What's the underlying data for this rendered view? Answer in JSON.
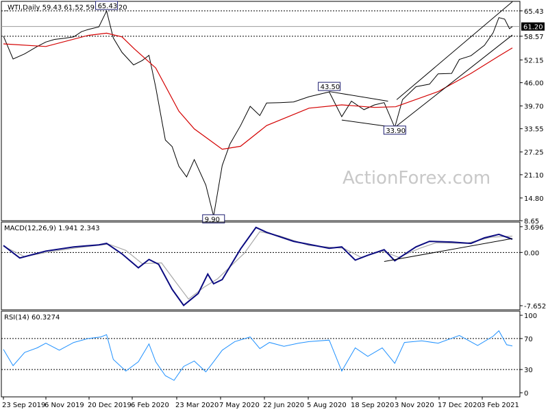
{
  "chart_data": [
    {
      "type": "candlestick",
      "header": "_WTI,Daily  59.43 61.52 59.17 61.20",
      "symbol": "_WTI",
      "timeframe": "Daily",
      "ohlc": {
        "open": 59.43,
        "high": 61.52,
        "low": 59.17,
        "close": 61.2
      },
      "y_ticks": [
        "65.43",
        "58.57",
        "52.15",
        "46.00",
        "39.70",
        "33.55",
        "27.25",
        "21.10",
        "14.80",
        "8.65"
      ],
      "ylim": [
        8.65,
        68.0
      ],
      "current_price_label": "61.20",
      "current_price": 61.2,
      "levels": [
        65.43,
        58.57
      ],
      "annotations": [
        {
          "text": "65.43",
          "date": "2020-01-08",
          "value": 65.43
        },
        {
          "text": "9.90",
          "date": "2020-04-28",
          "value": 9.9
        },
        {
          "text": "43.50",
          "date": "2020-08-26",
          "value": 43.5
        },
        {
          "text": "33.90",
          "date": "2020-11-02",
          "value": 33.9
        }
      ],
      "x_tick_labels": [
        "23 Sep 2019",
        "6 Nov 2019",
        "20 Dec 2019",
        "6 Feb 2020",
        "23 Mar 2020",
        "7 May 2020",
        "22 Jun 2020",
        "5 Aug 2020",
        "18 Sep 2020",
        "3 Nov 2020",
        "17 Dec 2020",
        "3 Feb 2021"
      ],
      "price_series": [
        [
          "2019-09-23",
          58.6
        ],
        [
          "2019-10-03",
          52.4
        ],
        [
          "2019-10-15",
          53.8
        ],
        [
          "2019-10-28",
          55.8
        ],
        [
          "2019-11-06",
          57.0
        ],
        [
          "2019-11-15",
          57.7
        ],
        [
          "2019-11-25",
          58.0
        ],
        [
          "2019-12-05",
          58.4
        ],
        [
          "2019-12-13",
          59.8
        ],
        [
          "2019-12-20",
          60.4
        ],
        [
          "2019-12-31",
          61.1
        ],
        [
          "2020-01-08",
          65.43
        ],
        [
          "2020-01-15",
          58.1
        ],
        [
          "2020-01-24",
          54.2
        ],
        [
          "2020-02-05",
          50.8
        ],
        [
          "2020-02-14",
          52.0
        ],
        [
          "2020-02-21",
          53.4
        ],
        [
          "2020-02-28",
          44.8
        ],
        [
          "2020-03-09",
          30.5
        ],
        [
          "2020-03-16",
          28.7
        ],
        [
          "2020-03-23",
          23.4
        ],
        [
          "2020-03-31",
          20.5
        ],
        [
          "2020-04-08",
          25.2
        ],
        [
          "2020-04-20",
          18.3
        ],
        [
          "2020-04-28",
          9.9
        ],
        [
          "2020-05-07",
          23.6
        ],
        [
          "2020-05-15",
          29.4
        ],
        [
          "2020-05-26",
          34.4
        ],
        [
          "2020-06-05",
          39.6
        ],
        [
          "2020-06-15",
          37.1
        ],
        [
          "2020-06-22",
          40.5
        ],
        [
          "2020-07-06",
          40.6
        ],
        [
          "2020-07-20",
          40.8
        ],
        [
          "2020-08-05",
          42.2
        ],
        [
          "2020-08-26",
          43.5
        ],
        [
          "2020-09-08",
          36.8
        ],
        [
          "2020-09-18",
          41.0
        ],
        [
          "2020-10-01",
          38.7
        ],
        [
          "2020-10-12",
          40.0
        ],
        [
          "2020-10-22",
          40.6
        ],
        [
          "2020-11-02",
          33.9
        ],
        [
          "2020-11-10",
          41.4
        ],
        [
          "2020-11-24",
          44.9
        ],
        [
          "2020-12-08",
          45.6
        ],
        [
          "2020-12-17",
          48.4
        ],
        [
          "2020-12-31",
          48.5
        ],
        [
          "2021-01-08",
          52.3
        ],
        [
          "2021-01-20",
          53.3
        ],
        [
          "2021-02-03",
          56.1
        ],
        [
          "2021-02-12",
          59.5
        ],
        [
          "2021-02-18",
          63.6
        ],
        [
          "2021-02-24",
          63.2
        ],
        [
          "2021-03-01",
          60.6
        ],
        [
          "2021-03-04",
          61.2
        ]
      ],
      "ma_series": [
        [
          "2019-09-23",
          56.5
        ],
        [
          "2019-11-06",
          55.8
        ],
        [
          "2019-12-20",
          58.8
        ],
        [
          "2020-01-08",
          59.4
        ],
        [
          "2020-01-24",
          58.4
        ],
        [
          "2020-02-06",
          55.1
        ],
        [
          "2020-02-28",
          50.0
        ],
        [
          "2020-03-23",
          38.3
        ],
        [
          "2020-04-08",
          33.5
        ],
        [
          "2020-05-07",
          28.0
        ],
        [
          "2020-05-26",
          28.8
        ],
        [
          "2020-06-22",
          34.4
        ],
        [
          "2020-08-05",
          39.1
        ],
        [
          "2020-09-08",
          40.0
        ],
        [
          "2020-10-12",
          39.3
        ],
        [
          "2020-11-03",
          39.5
        ],
        [
          "2020-12-17",
          43.6
        ],
        [
          "2021-01-20",
          48.5
        ],
        [
          "2021-02-18",
          53.2
        ],
        [
          "2021-03-04",
          55.4
        ]
      ],
      "trendlines": [
        {
          "from": [
            "2020-08-26",
            43.6
          ],
          "to": [
            "2020-10-26",
            41.0
          ]
        },
        {
          "from": [
            "2020-09-08",
            35.9
          ],
          "to": [
            "2020-11-02",
            33.9
          ]
        },
        {
          "from": [
            "2020-11-02",
            33.9
          ],
          "to": [
            "2021-03-04",
            58.9
          ]
        },
        {
          "from": [
            "2020-11-04",
            41.4
          ],
          "to": [
            "2021-03-04",
            67.9
          ]
        }
      ]
    },
    {
      "type": "line",
      "label": "MACD(12,26,9) 1.941 2.343",
      "indicator": "MACD",
      "params": [
        12,
        26,
        9
      ],
      "values": [
        1.941,
        2.343
      ],
      "y_ticks": [
        "3.696",
        "0.00",
        "-7.652"
      ],
      "ylim": [
        -7.652,
        3.696
      ],
      "macd_series": [
        [
          "2019-09-23",
          1.0
        ],
        [
          "2019-10-10",
          -0.8
        ],
        [
          "2019-11-06",
          0.2
        ],
        [
          "2019-12-05",
          0.8
        ],
        [
          "2019-12-31",
          1.1
        ],
        [
          "2020-01-08",
          1.3
        ],
        [
          "2020-01-24",
          -0.2
        ],
        [
          "2020-02-10",
          -2.2
        ],
        [
          "2020-02-21",
          -1.0
        ],
        [
          "2020-03-02",
          -1.7
        ],
        [
          "2020-03-16",
          -5.3
        ],
        [
          "2020-03-28",
          -7.6
        ],
        [
          "2020-04-12",
          -5.9
        ],
        [
          "2020-04-22",
          -3.1
        ],
        [
          "2020-04-28",
          -4.5
        ],
        [
          "2020-05-07",
          -3.9
        ],
        [
          "2020-05-26",
          0.5
        ],
        [
          "2020-06-11",
          3.6
        ],
        [
          "2020-06-22",
          2.9
        ],
        [
          "2020-07-20",
          1.6
        ],
        [
          "2020-08-26",
          0.6
        ],
        [
          "2020-09-08",
          0.8
        ],
        [
          "2020-09-22",
          -1.1
        ],
        [
          "2020-10-05",
          -0.4
        ],
        [
          "2020-10-22",
          0.4
        ],
        [
          "2020-11-02",
          -1.2
        ],
        [
          "2020-11-24",
          0.8
        ],
        [
          "2020-12-08",
          1.6
        ],
        [
          "2020-12-31",
          1.5
        ],
        [
          "2021-01-20",
          1.3
        ],
        [
          "2021-02-03",
          2.1
        ],
        [
          "2021-02-18",
          2.6
        ],
        [
          "2021-03-04",
          1.9
        ]
      ],
      "signal_series": [
        [
          "2019-09-23",
          0.9
        ],
        [
          "2019-10-15",
          -0.6
        ],
        [
          "2019-11-10",
          0.1
        ],
        [
          "2019-12-10",
          0.7
        ],
        [
          "2020-01-10",
          1.2
        ],
        [
          "2020-01-28",
          0.3
        ],
        [
          "2020-02-14",
          -1.6
        ],
        [
          "2020-03-05",
          -1.5
        ],
        [
          "2020-03-20",
          -4.3
        ],
        [
          "2020-04-02",
          -6.7
        ],
        [
          "2020-04-18",
          -5.0
        ],
        [
          "2020-05-02",
          -3.8
        ],
        [
          "2020-05-30",
          -0.1
        ],
        [
          "2020-06-15",
          3.0
        ],
        [
          "2020-07-05",
          2.4
        ],
        [
          "2020-08-05",
          1.0
        ],
        [
          "2020-09-10",
          0.6
        ],
        [
          "2020-09-28",
          -0.7
        ],
        [
          "2020-10-20",
          0.2
        ],
        [
          "2020-11-06",
          -0.7
        ],
        [
          "2020-11-28",
          0.6
        ],
        [
          "2020-12-15",
          1.4
        ],
        [
          "2021-01-15",
          1.3
        ],
        [
          "2021-02-10",
          2.2
        ],
        [
          "2021-03-04",
          2.343
        ]
      ],
      "trendline": {
        "from": [
          "2020-10-22",
          -1.3
        ],
        "to": [
          "2021-03-04",
          2.0
        ]
      }
    },
    {
      "type": "line",
      "label": "RSI(14) 60.3274",
      "indicator": "RSI",
      "params": [
        14
      ],
      "value": 60.3274,
      "y_ticks": [
        "100",
        "70",
        "30",
        "0"
      ],
      "ylim": [
        0,
        100
      ],
      "levels": [
        70,
        30
      ],
      "rsi_series": [
        [
          "2019-09-23",
          56
        ],
        [
          "2019-10-03",
          35
        ],
        [
          "2019-10-15",
          52
        ],
        [
          "2019-10-28",
          58
        ],
        [
          "2019-11-06",
          64
        ],
        [
          "2019-11-20",
          55
        ],
        [
          "2019-12-05",
          65
        ],
        [
          "2019-12-20",
          70
        ],
        [
          "2020-01-02",
          72
        ],
        [
          "2020-01-08",
          75
        ],
        [
          "2020-01-15",
          43
        ],
        [
          "2020-01-28",
          28
        ],
        [
          "2020-02-10",
          40
        ],
        [
          "2020-02-21",
          63
        ],
        [
          "2020-02-28",
          40
        ],
        [
          "2020-03-09",
          22
        ],
        [
          "2020-03-18",
          16
        ],
        [
          "2020-03-28",
          34
        ],
        [
          "2020-04-08",
          41
        ],
        [
          "2020-04-20",
          27
        ],
        [
          "2020-04-28",
          40
        ],
        [
          "2020-05-07",
          55
        ],
        [
          "2020-05-20",
          66
        ],
        [
          "2020-06-05",
          72
        ],
        [
          "2020-06-15",
          57
        ],
        [
          "2020-06-25",
          65
        ],
        [
          "2020-07-10",
          60
        ],
        [
          "2020-07-25",
          64
        ],
        [
          "2020-08-05",
          66
        ],
        [
          "2020-08-26",
          68
        ],
        [
          "2020-09-08",
          28
        ],
        [
          "2020-09-22",
          58
        ],
        [
          "2020-10-05",
          47
        ],
        [
          "2020-10-20",
          58
        ],
        [
          "2020-11-02",
          38
        ],
        [
          "2020-11-12",
          65
        ],
        [
          "2020-11-30",
          67
        ],
        [
          "2020-12-17",
          64
        ],
        [
          "2021-01-08",
          74
        ],
        [
          "2021-01-27",
          61
        ],
        [
          "2021-02-12",
          73
        ],
        [
          "2021-02-18",
          80
        ],
        [
          "2021-02-26",
          62
        ],
        [
          "2021-03-04",
          60.3274
        ]
      ]
    }
  ],
  "watermark": "ActionForex.com"
}
